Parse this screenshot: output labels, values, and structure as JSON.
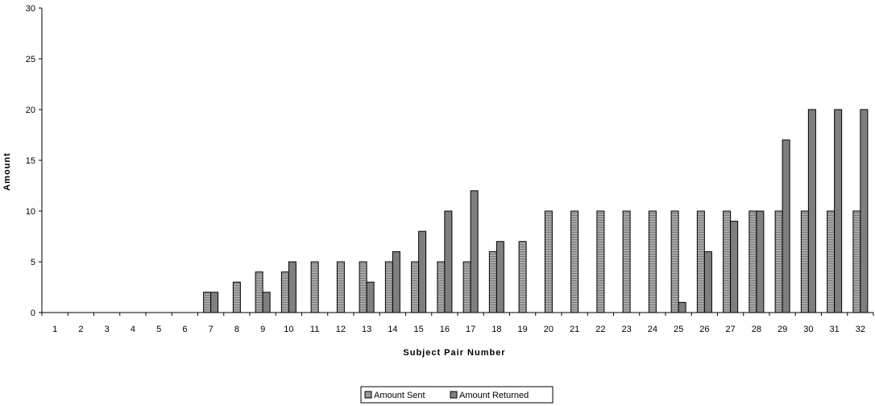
{
  "chart_data": {
    "type": "bar",
    "xlabel": "Subject Pair Number",
    "ylabel": "Amount",
    "ylim": [
      0,
      30
    ],
    "yticks": [
      "0",
      "5",
      "10",
      "15",
      "20",
      "25",
      "30"
    ],
    "grid": false,
    "legend_position": "bottom",
    "categories": [
      "1",
      "2",
      "3",
      "4",
      "5",
      "6",
      "7",
      "8",
      "9",
      "10",
      "11",
      "12",
      "13",
      "14",
      "15",
      "16",
      "17",
      "18",
      "19",
      "20",
      "21",
      "22",
      "23",
      "24",
      "25",
      "26",
      "27",
      "28",
      "29",
      "30",
      "31",
      "32"
    ],
    "series": [
      {
        "name": "Amount Sent",
        "values": [
          0,
          0,
          0,
          0,
          0,
          0,
          2,
          3,
          4,
          4,
          5,
          5,
          5,
          5,
          5,
          5,
          5,
          6,
          7,
          10,
          10,
          10,
          10,
          10,
          10,
          10,
          10,
          10,
          10,
          10,
          10,
          10
        ]
      },
      {
        "name": "Amount Returned",
        "values": [
          0,
          0,
          0,
          0,
          0,
          0,
          2,
          0,
          2,
          5,
          0,
          0,
          3,
          6,
          8,
          10,
          12,
          7,
          0,
          0,
          0,
          0,
          0,
          0,
          1,
          6,
          9,
          10,
          17,
          20,
          20,
          20
        ]
      }
    ]
  },
  "colors": {
    "sent_fill": "#a8a8a8",
    "sent_stripe": "#7a7a7a",
    "returned_fill": "#7f7f7f",
    "outline": "#000000"
  }
}
